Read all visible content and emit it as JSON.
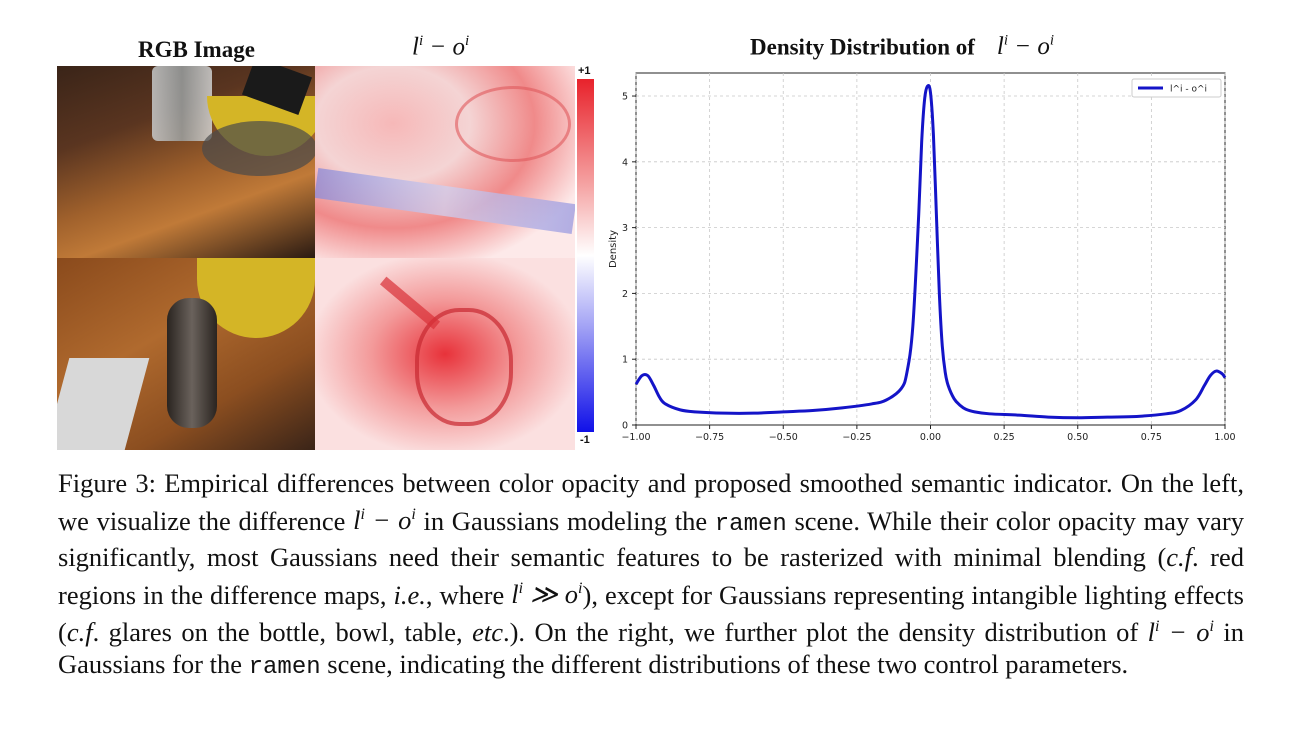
{
  "headings": {
    "rgb": "RGB Image",
    "diff_left": "l",
    "diff_sup1": "i",
    "diff_mid": " − o",
    "diff_sup2": "i",
    "density_prefix": "Density Distribution of",
    "density_l": "l",
    "density_sup1": "i",
    "density_mid": " − o",
    "density_sup2": "i"
  },
  "colorbar": {
    "top": "+1",
    "bottom": "-1",
    "pos_color": "#e8222b",
    "neg_color": "#1010e8"
  },
  "chart_data": {
    "type": "line",
    "title": "Density Distribution of l^i - o^i",
    "xlabel": "",
    "ylabel": "Density",
    "xlim": [
      -1.0,
      1.0
    ],
    "ylim": [
      0,
      5.35
    ],
    "xticks": [
      "−1.00",
      "−0.75",
      "−0.50",
      "−0.25",
      "0.00",
      "0.25",
      "0.50",
      "0.75",
      "1.00"
    ],
    "yticks": [
      "0",
      "1",
      "2",
      "3",
      "4",
      "5"
    ],
    "grid": true,
    "legend": "top-right",
    "series": [
      {
        "name": "l^i - o^i",
        "color": "#1414c8",
        "x": [
          -1.0,
          -0.98,
          -0.96,
          -0.94,
          -0.92,
          -0.9,
          -0.85,
          -0.8,
          -0.7,
          -0.6,
          -0.5,
          -0.4,
          -0.3,
          -0.2,
          -0.15,
          -0.1,
          -0.08,
          -0.06,
          -0.04,
          -0.03,
          -0.02,
          -0.01,
          0.0,
          0.01,
          0.02,
          0.03,
          0.04,
          0.05,
          0.06,
          0.08,
          0.1,
          0.12,
          0.15,
          0.2,
          0.3,
          0.4,
          0.5,
          0.6,
          0.7,
          0.8,
          0.85,
          0.9,
          0.93,
          0.95,
          0.97,
          0.99,
          1.0
        ],
        "y": [
          0.62,
          0.75,
          0.75,
          0.6,
          0.42,
          0.32,
          0.23,
          0.2,
          0.18,
          0.18,
          0.2,
          0.22,
          0.26,
          0.32,
          0.38,
          0.55,
          0.8,
          1.5,
          3.2,
          4.3,
          4.95,
          5.15,
          5.05,
          4.4,
          3.2,
          2.0,
          1.2,
          0.8,
          0.6,
          0.4,
          0.3,
          0.24,
          0.2,
          0.17,
          0.15,
          0.12,
          0.11,
          0.12,
          0.13,
          0.17,
          0.22,
          0.38,
          0.6,
          0.75,
          0.82,
          0.78,
          0.72
        ]
      }
    ]
  },
  "caption": {
    "p1": "Figure 3: Empirical differences between color opacity and proposed smoothed semantic indicator. On the left, we visualize the difference ",
    "m1a": "l",
    "m1b": "i",
    "m1c": " − o",
    "m1d": "i",
    "p2": " in Gaussians modeling the ",
    "code1": "ramen",
    "p3": " scene. While their color opacity may vary significantly, most Gaussians need their semantic features to be rasterized with minimal blending (",
    "cf1": "c.f",
    "p4": ". red regions in the difference maps, ",
    "ie": "i.e.",
    "p5": ", where ",
    "m2a": "l",
    "m2b": "i",
    "m2c": " ≫ o",
    "m2d": "i",
    "p6": "), except for Gaussians representing intangible lighting effects (",
    "cf2": "c.f",
    "p7": ". glares on the bottle, bowl, table, ",
    "etc": "etc",
    "p8": ".). On the right, we further plot the density distribution of ",
    "m3a": "l",
    "m3b": "i",
    "m3c": " − o",
    "m3d": "i",
    "p9": " in Gaussians for the ",
    "code2": "ramen",
    "p10": " scene, indicating the different distributions of these two control parameters."
  }
}
